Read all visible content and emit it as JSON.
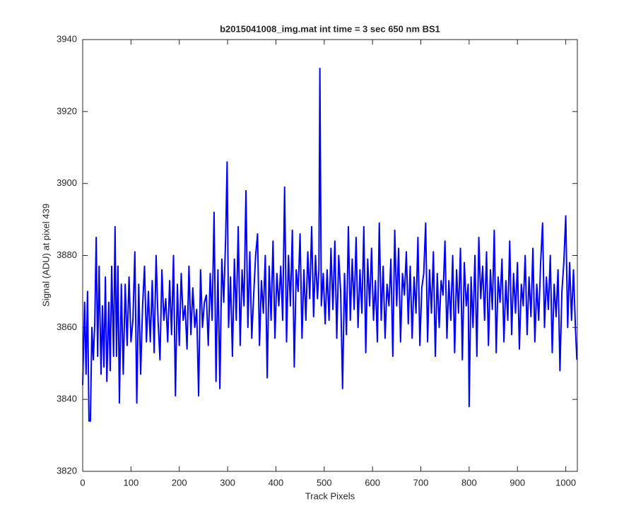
{
  "chart_data": {
    "type": "line",
    "title": "b2015041008_img.mat int time = 3 sec  650 nm BS1",
    "x_label": "Track Pixels",
    "y_label": "Signal (ADU) at pixel 439",
    "color": "#0000ff",
    "xlim": [
      0,
      1024
    ],
    "ylim": [
      3820,
      3940
    ],
    "xticks": [
      0,
      100,
      200,
      300,
      400,
      500,
      600,
      700,
      800,
      900,
      1000
    ],
    "yticks": [
      3820,
      3840,
      3860,
      3880,
      3900,
      3920,
      3940
    ],
    "x": [
      0,
      4,
      7,
      10,
      13,
      16,
      19,
      22,
      25,
      28,
      31,
      34,
      38,
      41,
      44,
      47,
      50,
      54,
      57,
      60,
      64,
      67,
      70,
      73,
      76,
      80,
      84,
      88,
      92,
      96,
      100,
      104,
      108,
      112,
      116,
      120,
      124,
      128,
      132,
      136,
      140,
      144,
      148,
      152,
      156,
      160,
      164,
      168,
      172,
      176,
      180,
      184,
      188,
      192,
      196,
      200,
      204,
      208,
      212,
      216,
      220,
      224,
      228,
      232,
      236,
      240,
      244,
      248,
      252,
      256,
      260,
      264,
      268,
      272,
      276,
      280,
      284,
      288,
      292,
      296,
      299,
      302,
      306,
      310,
      314,
      318,
      322,
      326,
      330,
      334,
      338,
      342,
      346,
      350,
      354,
      358,
      362,
      366,
      370,
      374,
      378,
      382,
      386,
      390,
      394,
      398,
      402,
      406,
      410,
      414,
      418,
      422,
      426,
      430,
      434,
      438,
      442,
      446,
      450,
      454,
      458,
      462,
      466,
      470,
      474,
      478,
      482,
      486,
      489,
      491,
      494,
      498,
      502,
      506,
      510,
      514,
      518,
      522,
      526,
      530,
      534,
      538,
      542,
      546,
      550,
      554,
      558,
      562,
      566,
      570,
      574,
      578,
      582,
      586,
      590,
      594,
      598,
      602,
      606,
      610,
      614,
      618,
      622,
      626,
      630,
      634,
      638,
      642,
      646,
      650,
      654,
      658,
      662,
      666,
      670,
      674,
      678,
      682,
      686,
      690,
      694,
      698,
      702,
      706,
      710,
      714,
      718,
      722,
      726,
      730,
      734,
      738,
      742,
      746,
      750,
      754,
      758,
      762,
      766,
      770,
      774,
      778,
      782,
      786,
      790,
      794,
      798,
      800,
      804,
      808,
      812,
      816,
      820,
      824,
      828,
      832,
      836,
      840,
      844,
      848,
      852,
      856,
      860,
      864,
      868,
      872,
      876,
      880,
      884,
      888,
      892,
      896,
      900,
      904,
      908,
      912,
      916,
      920,
      924,
      928,
      932,
      936,
      940,
      944,
      948,
      952,
      956,
      960,
      964,
      968,
      972,
      976,
      980,
      984,
      988,
      992,
      996,
      1000,
      1004,
      1008,
      1012,
      1016,
      1020,
      1023
    ],
    "values": [
      3844,
      3867,
      3847,
      3870,
      3834,
      3834,
      3860,
      3851,
      3861,
      3885,
      3852,
      3877,
      3847,
      3866,
      3849,
      3874,
      3845,
      3867,
      3848,
      3877,
      3852,
      3888,
      3852,
      3877,
      3839,
      3872,
      3847,
      3872,
      3855,
      3874,
      3856,
      3862,
      3881,
      3839,
      3872,
      3847,
      3866,
      3877,
      3856,
      3870,
      3856,
      3873,
      3853,
      3880,
      3862,
      3851,
      3876,
      3862,
      3868,
      3856,
      3873,
      3858,
      3880,
      3841,
      3872,
      3855,
      3875,
      3862,
      3866,
      3854,
      3877,
      3858,
      3871,
      3860,
      3865,
      3841,
      3876,
      3860,
      3867,
      3869,
      3855,
      3875,
      3862,
      3892,
      3845,
      3876,
      3843,
      3879,
      3867,
      3885,
      3906,
      3860,
      3874,
      3852,
      3879,
      3862,
      3888,
      3855,
      3876,
      3866,
      3898,
      3860,
      3881,
      3857,
      3869,
      3880,
      3886,
      3855,
      3873,
      3864,
      3880,
      3846,
      3877,
      3862,
      3884,
      3857,
      3875,
      3866,
      3877,
      3862,
      3899,
      3856,
      3880,
      3866,
      3887,
      3849,
      3876,
      3870,
      3886,
      3857,
      3876,
      3862,
      3881,
      3868,
      3888,
      3863,
      3880,
      3868,
      3876,
      3932,
      3866,
      3875,
      3861,
      3876,
      3862,
      3882,
      3865,
      3884,
      3857,
      3880,
      3870,
      3843,
      3875,
      3858,
      3888,
      3862,
      3879,
      3865,
      3885,
      3860,
      3876,
      3864,
      3888,
      3853,
      3879,
      3866,
      3882,
      3862,
      3873,
      3856,
      3889,
      3862,
      3877,
      3857,
      3872,
      3866,
      3879,
      3852,
      3887,
      3866,
      3882,
      3856,
      3875,
      3869,
      3881,
      3861,
      3877,
      3857,
      3874,
      3864,
      3885,
      3855,
      3871,
      3875,
      3889,
      3856,
      3876,
      3864,
      3881,
      3852,
      3875,
      3860,
      3873,
      3869,
      3884,
      3857,
      3873,
      3862,
      3880,
      3853,
      3876,
      3864,
      3882,
      3851,
      3878,
      3866,
      3872,
      3838,
      3874,
      3860,
      3880,
      3852,
      3885,
      3868,
      3877,
      3862,
      3881,
      3855,
      3876,
      3865,
      3887,
      3853,
      3874,
      3867,
      3879,
      3856,
      3873,
      3862,
      3884,
      3858,
      3875,
      3864,
      3878,
      3854,
      3872,
      3866,
      3880,
      3858,
      3874,
      3863,
      3882,
      3856,
      3872,
      3862,
      3878,
      3889,
      3860,
      3874,
      3865,
      3880,
      3853,
      3872,
      3863,
      3876,
      3848,
      3870,
      3878,
      3891,
      3860,
      3878,
      3862,
      3876,
      3860,
      3851
    ]
  }
}
